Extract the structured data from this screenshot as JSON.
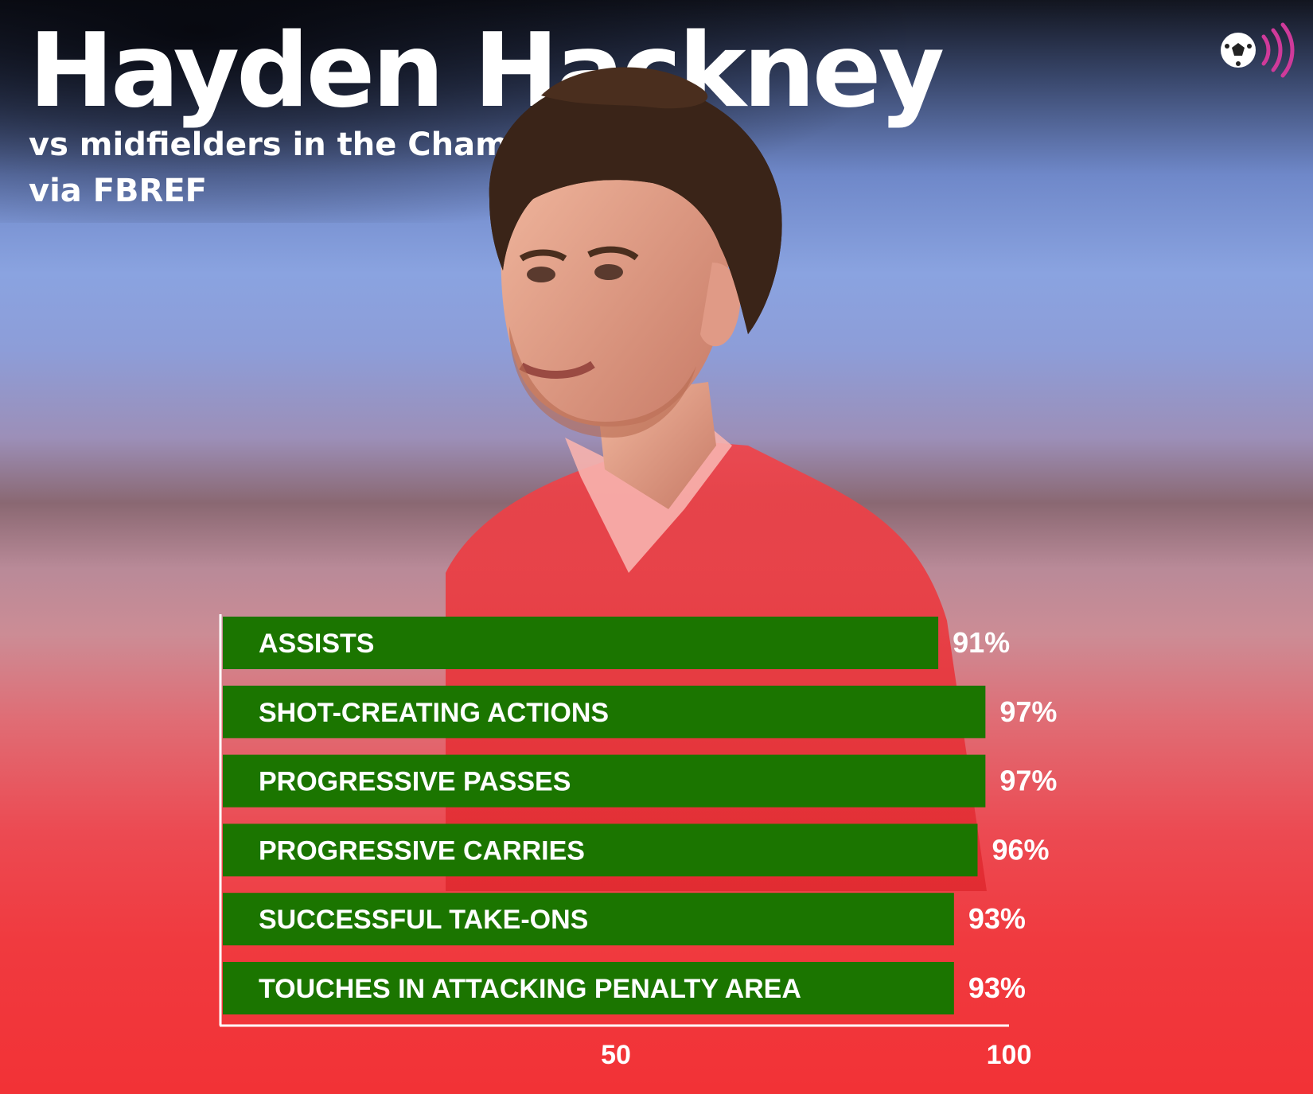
{
  "header": {
    "title": "Hayden Hackney",
    "subtitle": "vs midfielders in the Championship",
    "source": "via FBREF"
  },
  "logo": {
    "icon": "football-broadcast-icon",
    "accent": "#cf3a9a"
  },
  "colors": {
    "bar": "#1b7500",
    "text": "#ffffff",
    "axis": "#ffffff"
  },
  "chart_data": {
    "type": "bar",
    "orientation": "horizontal",
    "title": "Hayden Hackney",
    "subtitle": "vs midfielders in the Championship",
    "categories": [
      "ASSISTS",
      "SHOT-CREATING ACTIONS",
      "PROGRESSIVE PASSES",
      "PROGRESSIVE CARRIES",
      "SUCCESSFUL TAKE-ONS",
      "TOUCHES IN ATTACKING PENALTY AREA"
    ],
    "values": [
      91,
      97,
      97,
      96,
      93,
      93
    ],
    "value_labels": [
      "91%",
      "97%",
      "97%",
      "96%",
      "93%",
      "93%"
    ],
    "xlim": [
      0,
      100
    ],
    "xticks": [
      50,
      100
    ],
    "xtick_labels": [
      "50",
      "100"
    ],
    "xlabel": "",
    "ylabel": "",
    "grid": false,
    "legend": "none"
  }
}
